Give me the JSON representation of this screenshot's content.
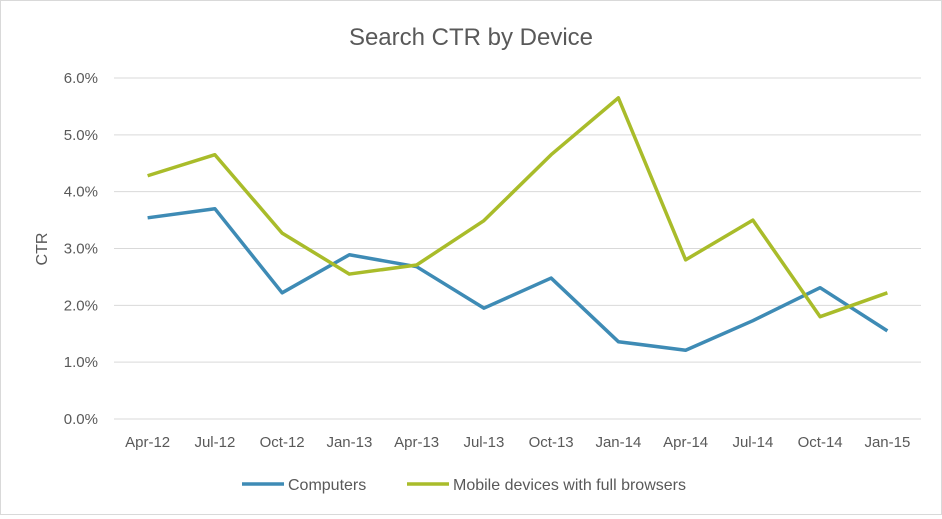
{
  "chart_data": {
    "type": "line",
    "title": "Search CTR by Device",
    "xlabel": "",
    "ylabel": "CTR",
    "ylim": [
      0,
      6
    ],
    "yticks": [
      "0.0%",
      "1.0%",
      "2.0%",
      "3.0%",
      "4.0%",
      "5.0%",
      "6.0%"
    ],
    "grid": true,
    "legend": "bottom",
    "categories": [
      "Apr-12",
      "Jul-12",
      "Oct-12",
      "Jan-13",
      "Apr-13",
      "Jul-13",
      "Oct-13",
      "Jan-14",
      "Apr-14",
      "Jul-14",
      "Oct-14",
      "Jan-15"
    ],
    "series": [
      {
        "name": "Computers",
        "color": "#3E8BB5",
        "values": [
          3.54,
          3.7,
          2.22,
          2.89,
          2.68,
          1.95,
          2.48,
          1.36,
          1.21,
          1.73,
          2.31,
          1.55
        ]
      },
      {
        "name": "Mobile devices with full browsers",
        "color": "#A9BC2A",
        "values": [
          4.28,
          4.65,
          3.27,
          2.55,
          2.71,
          3.49,
          4.65,
          5.65,
          2.8,
          3.5,
          1.8,
          2.22
        ]
      }
    ]
  }
}
